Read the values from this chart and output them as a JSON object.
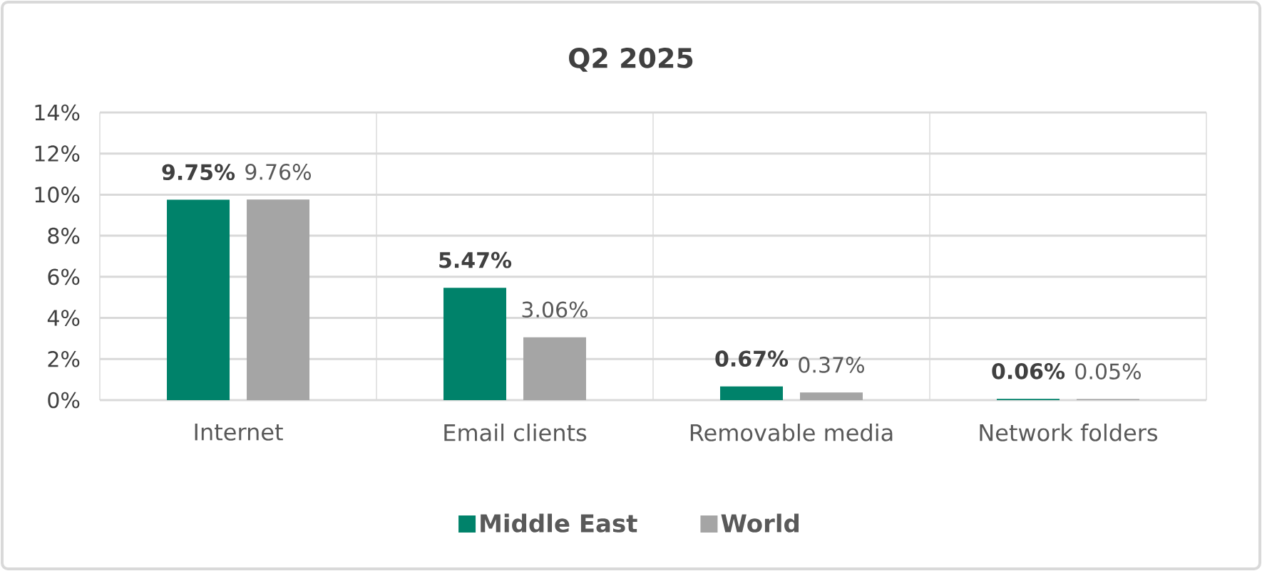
{
  "chart_data": {
    "type": "bar",
    "title": "Q2 2025",
    "categories": [
      "Internet",
      "Email clients",
      "Removable media",
      "Network folders"
    ],
    "series": [
      {
        "name": "Middle East",
        "color": "#00826a",
        "values": [
          9.75,
          5.47,
          0.67,
          0.06
        ],
        "value_labels": [
          "9.75%",
          "5.47%",
          "0.67%",
          "0.06%"
        ]
      },
      {
        "name": "World",
        "color": "#a5a5a5",
        "values": [
          9.76,
          3.06,
          0.37,
          0.05
        ],
        "value_labels": [
          "9.76%",
          "3.06%",
          "0.37%",
          "0.05%"
        ]
      }
    ],
    "ylim": [
      0,
      14
    ],
    "yticks": [
      {
        "value": 0,
        "label": "0%"
      },
      {
        "value": 2,
        "label": "2%"
      },
      {
        "value": 4,
        "label": "4%"
      },
      {
        "value": 6,
        "label": "6%"
      },
      {
        "value": 8,
        "label": "8%"
      },
      {
        "value": 10,
        "label": "10%"
      },
      {
        "value": 12,
        "label": "12%"
      },
      {
        "value": 14,
        "label": "14%"
      }
    ],
    "grid": true,
    "legend": "bottom"
  }
}
